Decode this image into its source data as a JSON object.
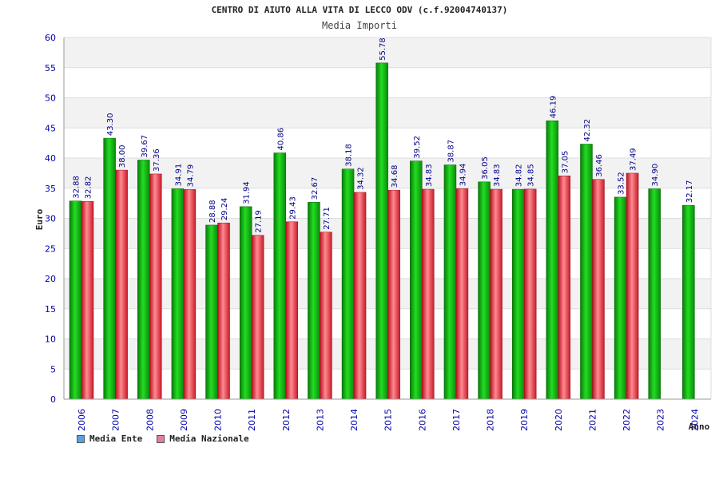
{
  "header": {
    "title": "CENTRO DI AIUTO ALLA VITA DI LECCO ODV (c.f.92004740137)",
    "subtitle": "Media Importi"
  },
  "legend": {
    "items": [
      {
        "label": "Media Ente",
        "color": "#5aa0e6"
      },
      {
        "label": "Media Nazionale",
        "color": "#e87aa8"
      }
    ]
  },
  "colors": {
    "ente": "#00aa00",
    "nazionale": "#e0202a",
    "band": "#f2f2f2",
    "grid": "#dddddd",
    "tick_text": "#0000aa"
  },
  "chart_data": {
    "type": "bar",
    "title": "CENTRO DI AIUTO ALLA VITA DI LECCO ODV (c.f.92004740137)",
    "subtitle": "Media Importi",
    "xlabel": "Anno",
    "ylabel": "Euro",
    "ylim": [
      0,
      60
    ],
    "yticks": [
      0,
      5,
      10,
      15,
      20,
      25,
      30,
      35,
      40,
      45,
      50,
      55,
      60
    ],
    "grid": true,
    "legend_position": "bottom-left",
    "categories": [
      "2006",
      "2007",
      "2008",
      "2009",
      "2010",
      "2011",
      "2012",
      "2013",
      "2014",
      "2015",
      "2016",
      "2017",
      "2018",
      "2019",
      "2020",
      "2021",
      "2022",
      "2023",
      "2024"
    ],
    "series": [
      {
        "name": "Media Ente",
        "values": [
          32.88,
          43.3,
          39.67,
          34.91,
          28.88,
          31.94,
          40.86,
          32.67,
          38.18,
          55.78,
          39.52,
          38.87,
          36.05,
          34.82,
          46.19,
          42.32,
          33.52,
          34.9,
          32.17
        ],
        "labels": [
          "32.88",
          "43.30",
          "39.67",
          "34.91",
          "28.88",
          "31.94",
          "40.86",
          "32.67",
          "38.18",
          "55.78",
          "39.52",
          "38.87",
          "36.05",
          "34.82",
          "46.19",
          "42.32",
          "33.52",
          "34.90",
          "32.17"
        ]
      },
      {
        "name": "Media Nazionale",
        "values": [
          32.82,
          38.0,
          37.36,
          34.79,
          29.24,
          27.19,
          29.43,
          27.71,
          34.32,
          34.68,
          34.83,
          34.94,
          34.83,
          34.85,
          37.05,
          36.46,
          37.49,
          null,
          null
        ],
        "labels": [
          "32.82",
          "38.00",
          "37.36",
          "34.79",
          "29.24",
          "27.19",
          "29.43",
          "27.71",
          "34.32",
          "34.68",
          "34.83",
          "34.94",
          "34.83",
          "34.85",
          "37.05",
          "36.46",
          "37.49",
          null,
          null
        ]
      }
    ]
  }
}
